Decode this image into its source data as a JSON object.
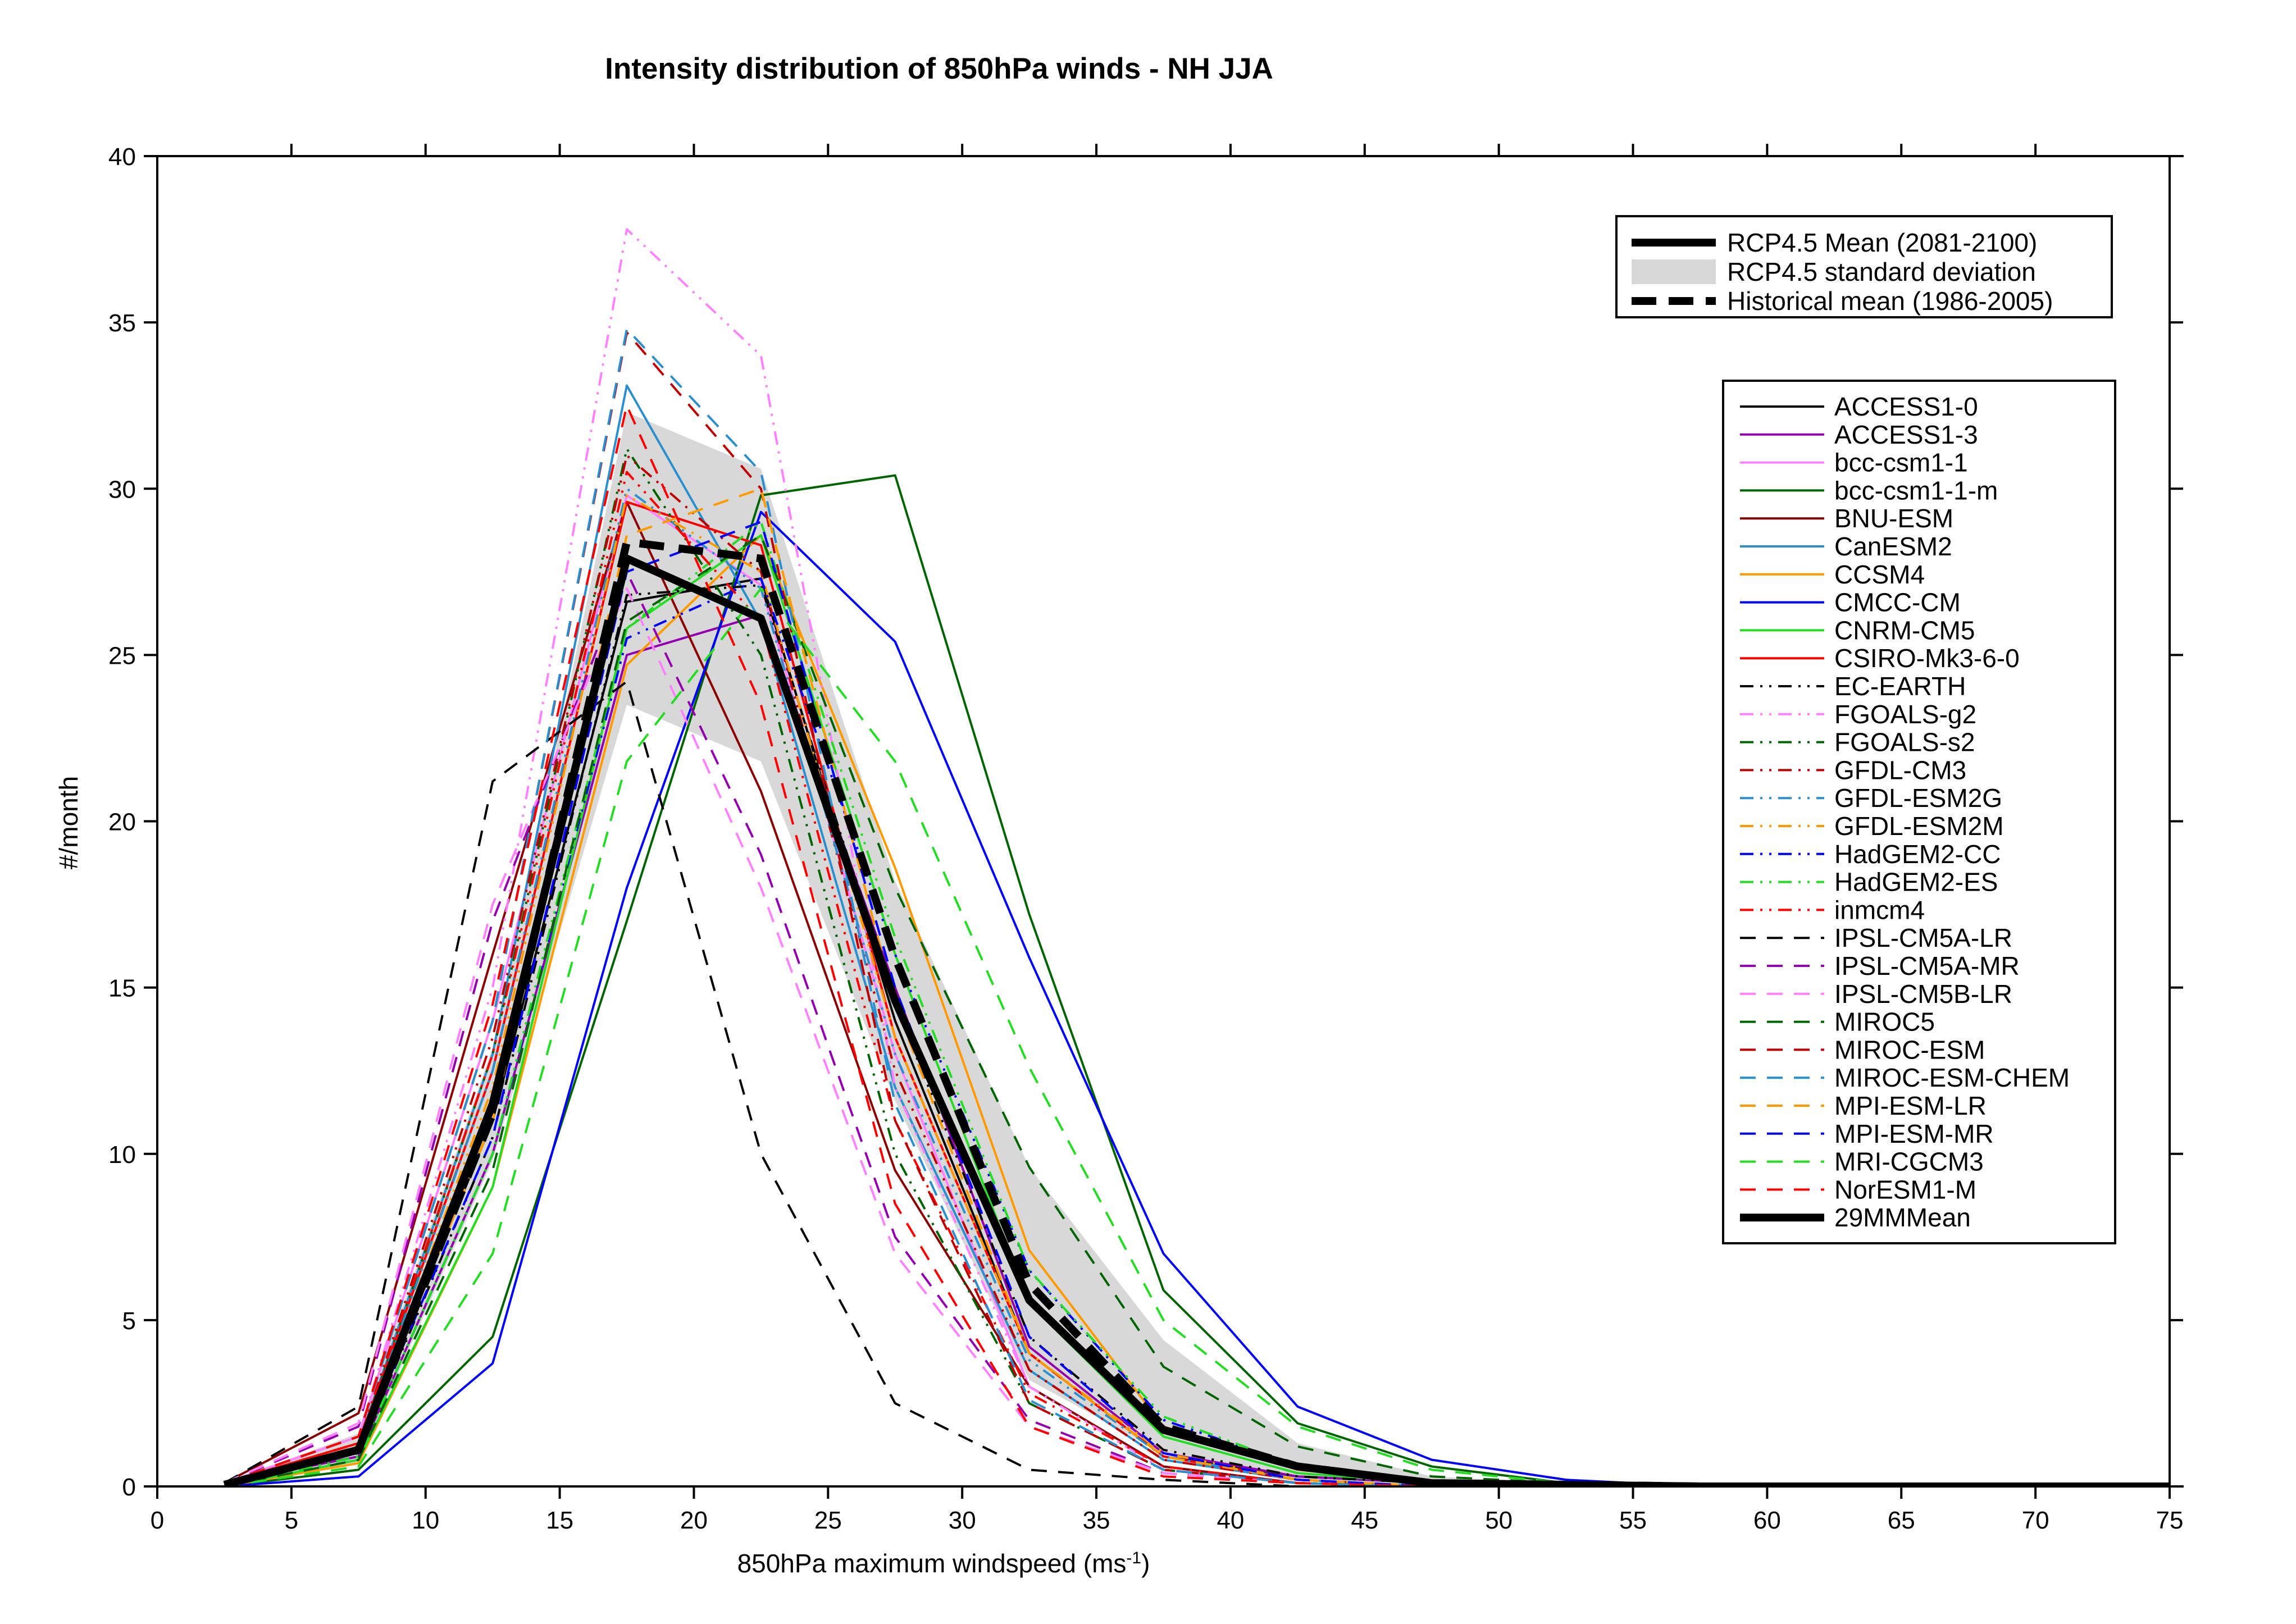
{
  "chart_data": {
    "type": "line",
    "title": "Intensity distribution of 850hPa winds - NH JJA",
    "xlabel_main": "850hPa maximum windspeed (ms",
    "xlabel_sup": "-1",
    "xlabel_end": ")",
    "ylabel": "#/month",
    "xlim": [
      0,
      75
    ],
    "ylim": [
      0,
      40
    ],
    "xticks": [
      0,
      5,
      10,
      15,
      20,
      25,
      30,
      35,
      40,
      45,
      50,
      55,
      60,
      65,
      70,
      75
    ],
    "yticks": [
      0,
      5,
      10,
      15,
      20,
      25,
      30,
      35,
      40
    ],
    "grid": false,
    "x": [
      2.5,
      7.5,
      12.5,
      17.5,
      22.5,
      27.5,
      32.5,
      37.5,
      42.5,
      47.5,
      52.5,
      57.5,
      62.5,
      67.5,
      72.5,
      77.5
    ],
    "rcp45_std_band": {
      "label": "RCP4.5 standard deviation",
      "color": "#d8d8d8",
      "upper": [
        0.1,
        1.6,
        13.2,
        32.3,
        30.6,
        18.2,
        9.6,
        4.4,
        1.3,
        0.3,
        0.1,
        0.0,
        0.0,
        0.0,
        0.0,
        0.0
      ],
      "lower": [
        0.0,
        0.7,
        9.8,
        23.5,
        21.8,
        11.6,
        3.2,
        1.0,
        0.2,
        0.0,
        0.0,
        0.0,
        0.0,
        0.0,
        0.0,
        0.0
      ]
    },
    "rcp45_mean": {
      "label": "RCP4.5 Mean (2081-2100)",
      "values": [
        0.05,
        1.1,
        11.5,
        27.9,
        26.1,
        14.6,
        5.6,
        1.7,
        0.6,
        0.1,
        0.05,
        0.0,
        0.0,
        0.0,
        0.0,
        0.0
      ]
    },
    "hist_mean": {
      "label": "Historical mean (1986-2005)",
      "values": [
        0.05,
        1.1,
        11.2,
        28.4,
        27.9,
        15.9,
        6.1,
        1.8,
        0.6,
        0.1,
        0.05,
        0.0,
        0.0,
        0.0,
        0.0,
        0.0
      ]
    },
    "series": [
      {
        "name": "ACCESS1-0",
        "color": "#000000",
        "dash": "solid",
        "values": [
          0.1,
          1.1,
          11.0,
          26.6,
          27.3,
          14.0,
          4.0,
          0.9,
          0.3,
          0.1,
          0.0,
          0.0,
          0.0,
          0.0,
          0.0,
          0.0
        ]
      },
      {
        "name": "ACCESS1-3",
        "color": "#9400b0",
        "dash": "solid",
        "values": [
          0.1,
          0.9,
          10.0,
          25.0,
          26.2,
          15.0,
          4.2,
          1.0,
          0.3,
          0.1,
          0.0,
          0.0,
          0.0,
          0.0,
          0.0,
          0.0
        ]
      },
      {
        "name": "bcc-csm1-1",
        "color": "#ff80ff",
        "dash": "solid",
        "values": [
          0.1,
          1.5,
          14.0,
          29.8,
          27.1,
          13.0,
          3.0,
          0.6,
          0.1,
          0.0,
          0.0,
          0.0,
          0.0,
          0.0,
          0.0,
          0.0
        ]
      },
      {
        "name": "bcc-csm1-1-m",
        "color": "#006400",
        "dash": "solid",
        "values": [
          0.0,
          0.5,
          4.5,
          17.0,
          29.8,
          30.4,
          17.2,
          5.9,
          1.9,
          0.6,
          0.1,
          0.0,
          0.0,
          0.0,
          0.0,
          0.0
        ]
      },
      {
        "name": "BNU-ESM",
        "color": "#8b0000",
        "dash": "solid",
        "values": [
          0.1,
          2.2,
          16.0,
          29.6,
          20.9,
          9.5,
          3.0,
          0.6,
          0.1,
          0.0,
          0.0,
          0.0,
          0.0,
          0.0,
          0.0,
          0.0
        ]
      },
      {
        "name": "CanESM2",
        "color": "#2a8fd0",
        "dash": "solid",
        "values": [
          0.1,
          1.3,
          13.0,
          33.1,
          26.0,
          12.0,
          3.5,
          0.8,
          0.2,
          0.0,
          0.0,
          0.0,
          0.0,
          0.0,
          0.0,
          0.0
        ]
      },
      {
        "name": "CCSM4",
        "color": "#ff9900",
        "dash": "solid",
        "values": [
          0.0,
          0.7,
          9.0,
          24.7,
          28.6,
          18.6,
          7.1,
          1.8,
          0.5,
          0.1,
          0.0,
          0.0,
          0.0,
          0.0,
          0.0,
          0.0
        ]
      },
      {
        "name": "CMCC-CM",
        "color": "#0000ff",
        "dash": "solid",
        "values": [
          0.0,
          0.3,
          3.7,
          18.0,
          29.3,
          25.4,
          15.9,
          7.0,
          2.4,
          0.8,
          0.2,
          0.0,
          0.0,
          0.0,
          0.0,
          0.0
        ]
      },
      {
        "name": "CNRM-CM5",
        "color": "#22dd22",
        "dash": "solid",
        "values": [
          0.0,
          0.8,
          9.0,
          25.8,
          28.6,
          16.0,
          5.5,
          1.5,
          0.4,
          0.1,
          0.0,
          0.0,
          0.0,
          0.0,
          0.0,
          0.0
        ]
      },
      {
        "name": "CSIRO-Mk3-6-0",
        "color": "#ff0000",
        "dash": "solid",
        "values": [
          0.1,
          1.3,
          12.5,
          29.6,
          28.3,
          13.5,
          4.0,
          0.9,
          0.2,
          0.0,
          0.0,
          0.0,
          0.0,
          0.0,
          0.0,
          0.0
        ]
      },
      {
        "name": "EC-EARTH",
        "color": "#000000",
        "dash": "dashdotdot",
        "values": [
          0.1,
          1.0,
          10.5,
          26.8,
          27.1,
          14.5,
          4.5,
          1.1,
          0.3,
          0.1,
          0.0,
          0.0,
          0.0,
          0.0,
          0.0,
          0.0
        ]
      },
      {
        "name": "FGOALS-g2",
        "color": "#ff80ff",
        "dash": "dashdotdot",
        "values": [
          0.1,
          1.5,
          15.0,
          37.8,
          34.0,
          12.0,
          3.0,
          0.5,
          0.1,
          0.0,
          0.0,
          0.0,
          0.0,
          0.0,
          0.0,
          0.0
        ]
      },
      {
        "name": "FGOALS-s2",
        "color": "#006400",
        "dash": "dashdotdot",
        "values": [
          0.1,
          1.2,
          13.0,
          31.2,
          25.0,
          10.0,
          2.5,
          0.5,
          0.1,
          0.0,
          0.0,
          0.0,
          0.0,
          0.0,
          0.0,
          0.0
        ]
      },
      {
        "name": "GFDL-CM3",
        "color": "#c00000",
        "dash": "dashdotdot",
        "values": [
          0.1,
          1.3,
          13.5,
          31.0,
          27.5,
          12.5,
          3.5,
          0.8,
          0.2,
          0.0,
          0.0,
          0.0,
          0.0,
          0.0,
          0.0,
          0.0
        ]
      },
      {
        "name": "GFDL-ESM2G",
        "color": "#2a8fd0",
        "dash": "dashdotdot",
        "values": [
          0.1,
          1.2,
          12.5,
          30.0,
          27.0,
          13.0,
          3.8,
          0.9,
          0.2,
          0.0,
          0.0,
          0.0,
          0.0,
          0.0,
          0.0,
          0.0
        ]
      },
      {
        "name": "GFDL-ESM2M",
        "color": "#ff9900",
        "dash": "dashdotdot",
        "values": [
          0.1,
          1.2,
          12.0,
          29.8,
          27.5,
          13.5,
          4.0,
          1.0,
          0.2,
          0.0,
          0.0,
          0.0,
          0.0,
          0.0,
          0.0,
          0.0
        ]
      },
      {
        "name": "HadGEM2-CC",
        "color": "#0000ff",
        "dash": "dashdotdot",
        "values": [
          0.0,
          0.9,
          10.0,
          25.5,
          27.3,
          16.0,
          6.5,
          2.0,
          0.6,
          0.1,
          0.0,
          0.0,
          0.0,
          0.0,
          0.0,
          0.0
        ]
      },
      {
        "name": "HadGEM2-ES",
        "color": "#22dd22",
        "dash": "dashdotdot",
        "values": [
          0.0,
          0.9,
          10.0,
          25.8,
          29.0,
          16.5,
          6.5,
          2.1,
          0.6,
          0.1,
          0.0,
          0.0,
          0.0,
          0.0,
          0.0,
          0.0
        ]
      },
      {
        "name": "inmcm4",
        "color": "#ff0000",
        "dash": "dashdotdot",
        "values": [
          0.1,
          1.3,
          13.0,
          30.5,
          26.0,
          11.0,
          2.8,
          0.6,
          0.1,
          0.0,
          0.0,
          0.0,
          0.0,
          0.0,
          0.0,
          0.0
        ]
      },
      {
        "name": "IPSL-CM5A-LR",
        "color": "#000000",
        "dash": "dashed",
        "values": [
          0.1,
          2.4,
          21.2,
          24.2,
          10.0,
          2.5,
          0.5,
          0.2,
          0.0,
          0.0,
          0.0,
          0.0,
          0.0,
          0.0,
          0.0,
          0.0
        ]
      },
      {
        "name": "IPSL-CM5A-MR",
        "color": "#9400b0",
        "dash": "dashed",
        "values": [
          0.1,
          1.8,
          17.0,
          27.5,
          19.0,
          7.5,
          2.0,
          0.4,
          0.1,
          0.0,
          0.0,
          0.0,
          0.0,
          0.0,
          0.0,
          0.0
        ]
      },
      {
        "name": "IPSL-CM5B-LR",
        "color": "#ff80ff",
        "dash": "dashed",
        "values": [
          0.1,
          1.9,
          17.5,
          27.0,
          18.0,
          7.0,
          1.8,
          0.4,
          0.1,
          0.0,
          0.0,
          0.0,
          0.0,
          0.0,
          0.0,
          0.0
        ]
      },
      {
        "name": "MIROC5",
        "color": "#006400",
        "dash": "dashed",
        "values": [
          0.0,
          0.8,
          9.5,
          26.0,
          28.6,
          18.0,
          9.6,
          3.6,
          1.2,
          0.3,
          0.1,
          0.0,
          0.0,
          0.0,
          0.0,
          0.0
        ]
      },
      {
        "name": "MIROC-ESM",
        "color": "#c00000",
        "dash": "dashed",
        "values": [
          0.1,
          1.5,
          14.0,
          34.7,
          30.0,
          11.0,
          2.5,
          0.5,
          0.1,
          0.0,
          0.0,
          0.0,
          0.0,
          0.0,
          0.0,
          0.0
        ]
      },
      {
        "name": "MIROC-ESM-CHEM",
        "color": "#2a8fd0",
        "dash": "dashed",
        "values": [
          0.1,
          1.5,
          14.0,
          34.8,
          30.5,
          11.5,
          2.6,
          0.5,
          0.1,
          0.0,
          0.0,
          0.0,
          0.0,
          0.0,
          0.0,
          0.0
        ]
      },
      {
        "name": "MPI-ESM-LR",
        "color": "#ff9900",
        "dash": "dashed",
        "values": [
          0.1,
          1.1,
          11.0,
          28.6,
          30.0,
          14.5,
          4.0,
          0.9,
          0.2,
          0.0,
          0.0,
          0.0,
          0.0,
          0.0,
          0.0,
          0.0
        ]
      },
      {
        "name": "MPI-ESM-MR",
        "color": "#0000ff",
        "dash": "dashed",
        "values": [
          0.1,
          1.1,
          10.5,
          27.5,
          29.0,
          15.0,
          4.5,
          1.0,
          0.2,
          0.0,
          0.0,
          0.0,
          0.0,
          0.0,
          0.0,
          0.0
        ]
      },
      {
        "name": "MRI-CGCM3",
        "color": "#22dd22",
        "dash": "dashed",
        "values": [
          0.0,
          0.6,
          7.0,
          21.8,
          27.0,
          21.8,
          12.6,
          5.0,
          1.8,
          0.5,
          0.1,
          0.0,
          0.0,
          0.0,
          0.0,
          0.0
        ]
      },
      {
        "name": "NorESM1-M",
        "color": "#ff0000",
        "dash": "dashed",
        "values": [
          0.1,
          1.5,
          14.5,
          32.5,
          23.5,
          8.5,
          1.8,
          0.3,
          0.1,
          0.0,
          0.0,
          0.0,
          0.0,
          0.0,
          0.0,
          0.0
        ]
      },
      {
        "name": "29MMMean",
        "color": "#000000",
        "dash": "solid",
        "thick": true,
        "values": [
          0.05,
          1.1,
          11.5,
          27.9,
          26.1,
          14.6,
          5.6,
          1.7,
          0.6,
          0.1,
          0.05,
          0.0,
          0.0,
          0.0,
          0.0,
          0.0
        ]
      }
    ]
  }
}
